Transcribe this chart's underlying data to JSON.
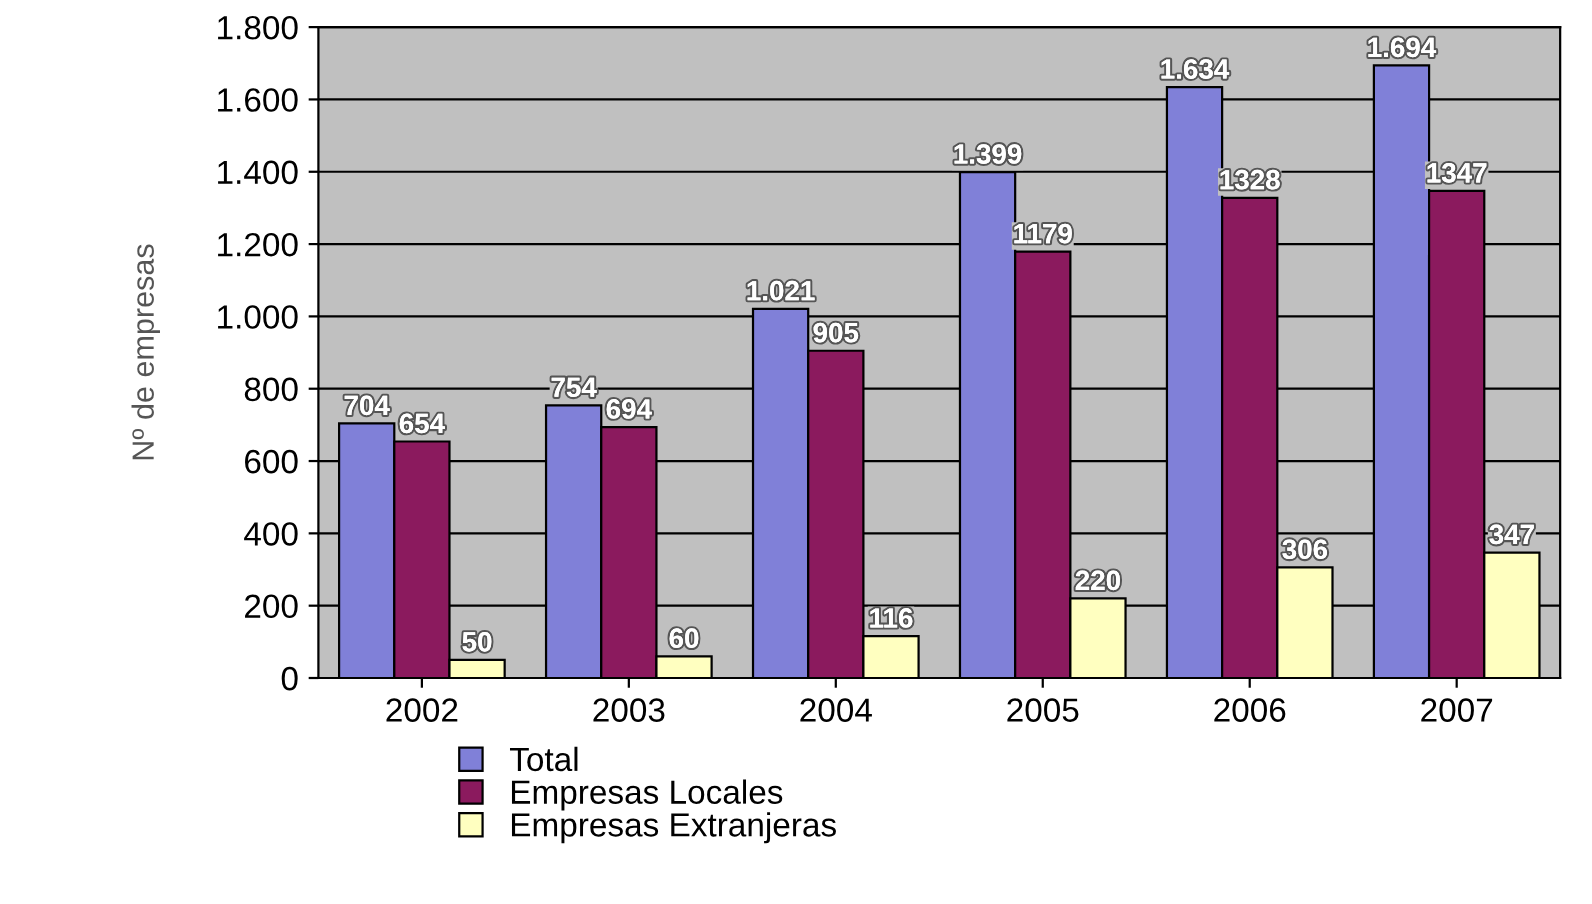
{
  "chart_data": {
    "type": "bar",
    "ylabel": "Nº de empresas",
    "categories": [
      "2002",
      "2003",
      "2004",
      "2005",
      "2006",
      "2007"
    ],
    "series": [
      {
        "name": "Total",
        "color": "#8080d8",
        "values": [
          704,
          754,
          1021,
          1399,
          1634,
          1694
        ],
        "value_labels": [
          "704",
          "754",
          "1.021",
          "1.399",
          "1.634",
          "1.694"
        ]
      },
      {
        "name": "Empresas Locales",
        "color": "#8b1a5e",
        "values": [
          654,
          694,
          905,
          1179,
          1328,
          1347
        ],
        "value_labels": [
          "654",
          "694",
          "905",
          "1179",
          "1328",
          "1347"
        ]
      },
      {
        "name": "Empresas Extranjeras",
        "color": "#ffffc0",
        "values": [
          50,
          60,
          116,
          220,
          306,
          347
        ],
        "value_labels": [
          "50",
          "60",
          "116",
          "220",
          "306",
          "347"
        ]
      }
    ],
    "ylim": [
      0,
      1800
    ],
    "yticks": [
      0,
      200,
      400,
      600,
      800,
      {
        "value": 1000,
        "label": "1.000"
      },
      {
        "value": 1200,
        "label": "1.200"
      },
      {
        "value": 1400,
        "label": "1.400"
      },
      {
        "value": 1600,
        "label": "1.600"
      },
      {
        "value": 1800,
        "label": "1.800"
      }
    ],
    "grid": "y",
    "legend": "bottom"
  }
}
